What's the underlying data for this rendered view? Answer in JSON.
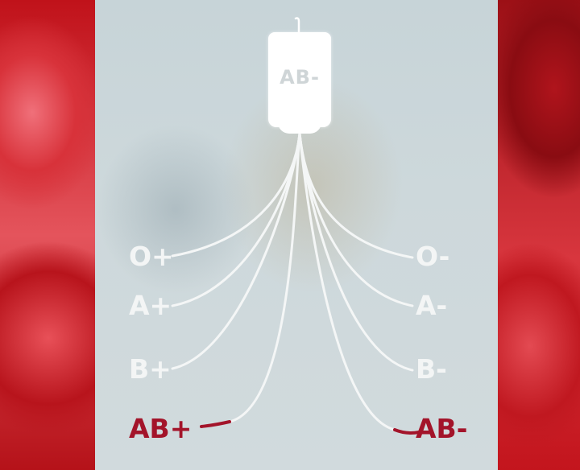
{
  "bag": {
    "label": "AB-"
  },
  "left_labels": [
    "O+",
    "A+",
    "B+",
    "AB+"
  ],
  "right_labels": [
    "O-",
    "A-",
    "B-",
    "AB-"
  ],
  "highlight": {
    "left": "AB+",
    "right": "AB-"
  },
  "colors": {
    "line": "#f4f6f6",
    "highlight": "#a3142a",
    "panel": "#cbd7da",
    "blood": "#c91a1f"
  }
}
